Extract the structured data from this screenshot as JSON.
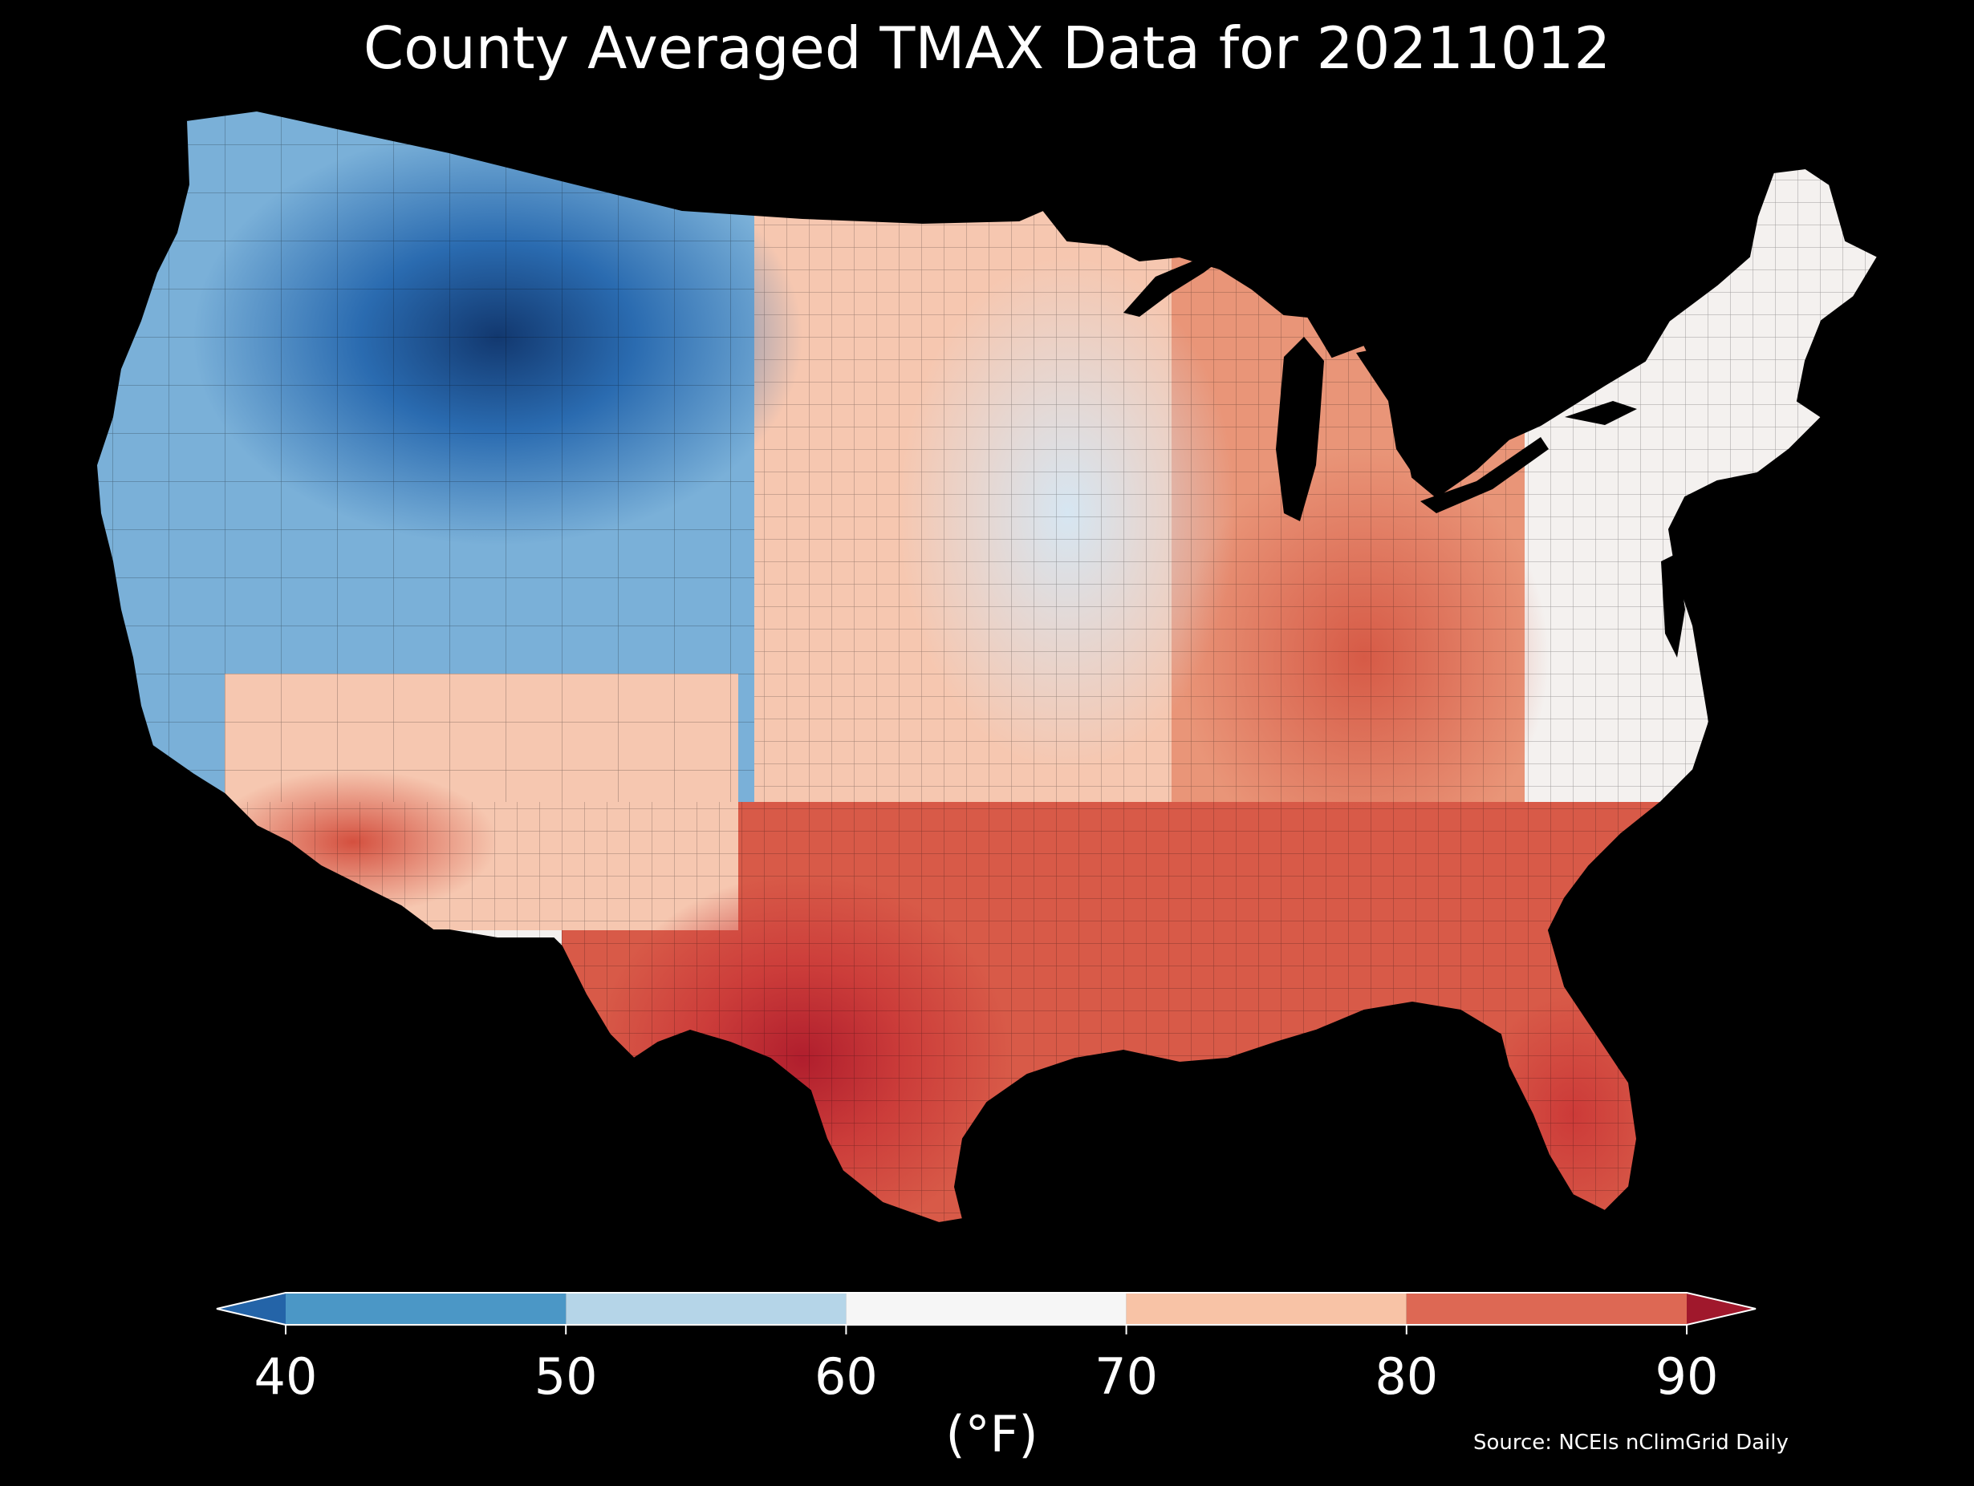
{
  "title": "County Averaged TMAX Data for 20211012",
  "source_note": "Source: NCEIs nClimGrid Daily",
  "colorbar": {
    "unit_label": "(°F)",
    "ticks": [
      "40",
      "50",
      "60",
      "70",
      "80",
      "90"
    ],
    "bins": [
      {
        "range": [
          40,
          50
        ],
        "color": "#4b97c6"
      },
      {
        "range": [
          50,
          60
        ],
        "color": "#b5d5e8"
      },
      {
        "range": [
          60,
          70
        ],
        "color": "#f6f6f6"
      },
      {
        "range": [
          70,
          80
        ],
        "color": "#f8c3a6"
      },
      {
        "range": [
          80,
          90
        ],
        "color": "#dd6854"
      }
    ],
    "under_color": "#2464a8",
    "over_color": "#a0182c",
    "extend": "both"
  },
  "map": {
    "region": "Contiguous United States",
    "unit_level": "county",
    "colors": {
      "very_cold": "#1a4f8c",
      "cold": "#3c80bd",
      "cool": "#7ab0d8",
      "mild": "#d6e6f2",
      "neutral": "#f4f1ef",
      "warm": "#f6c7b0",
      "warmer": "#e99578",
      "hot": "#d85a48",
      "very_hot": "#b4222c",
      "background": "#000000"
    }
  }
}
